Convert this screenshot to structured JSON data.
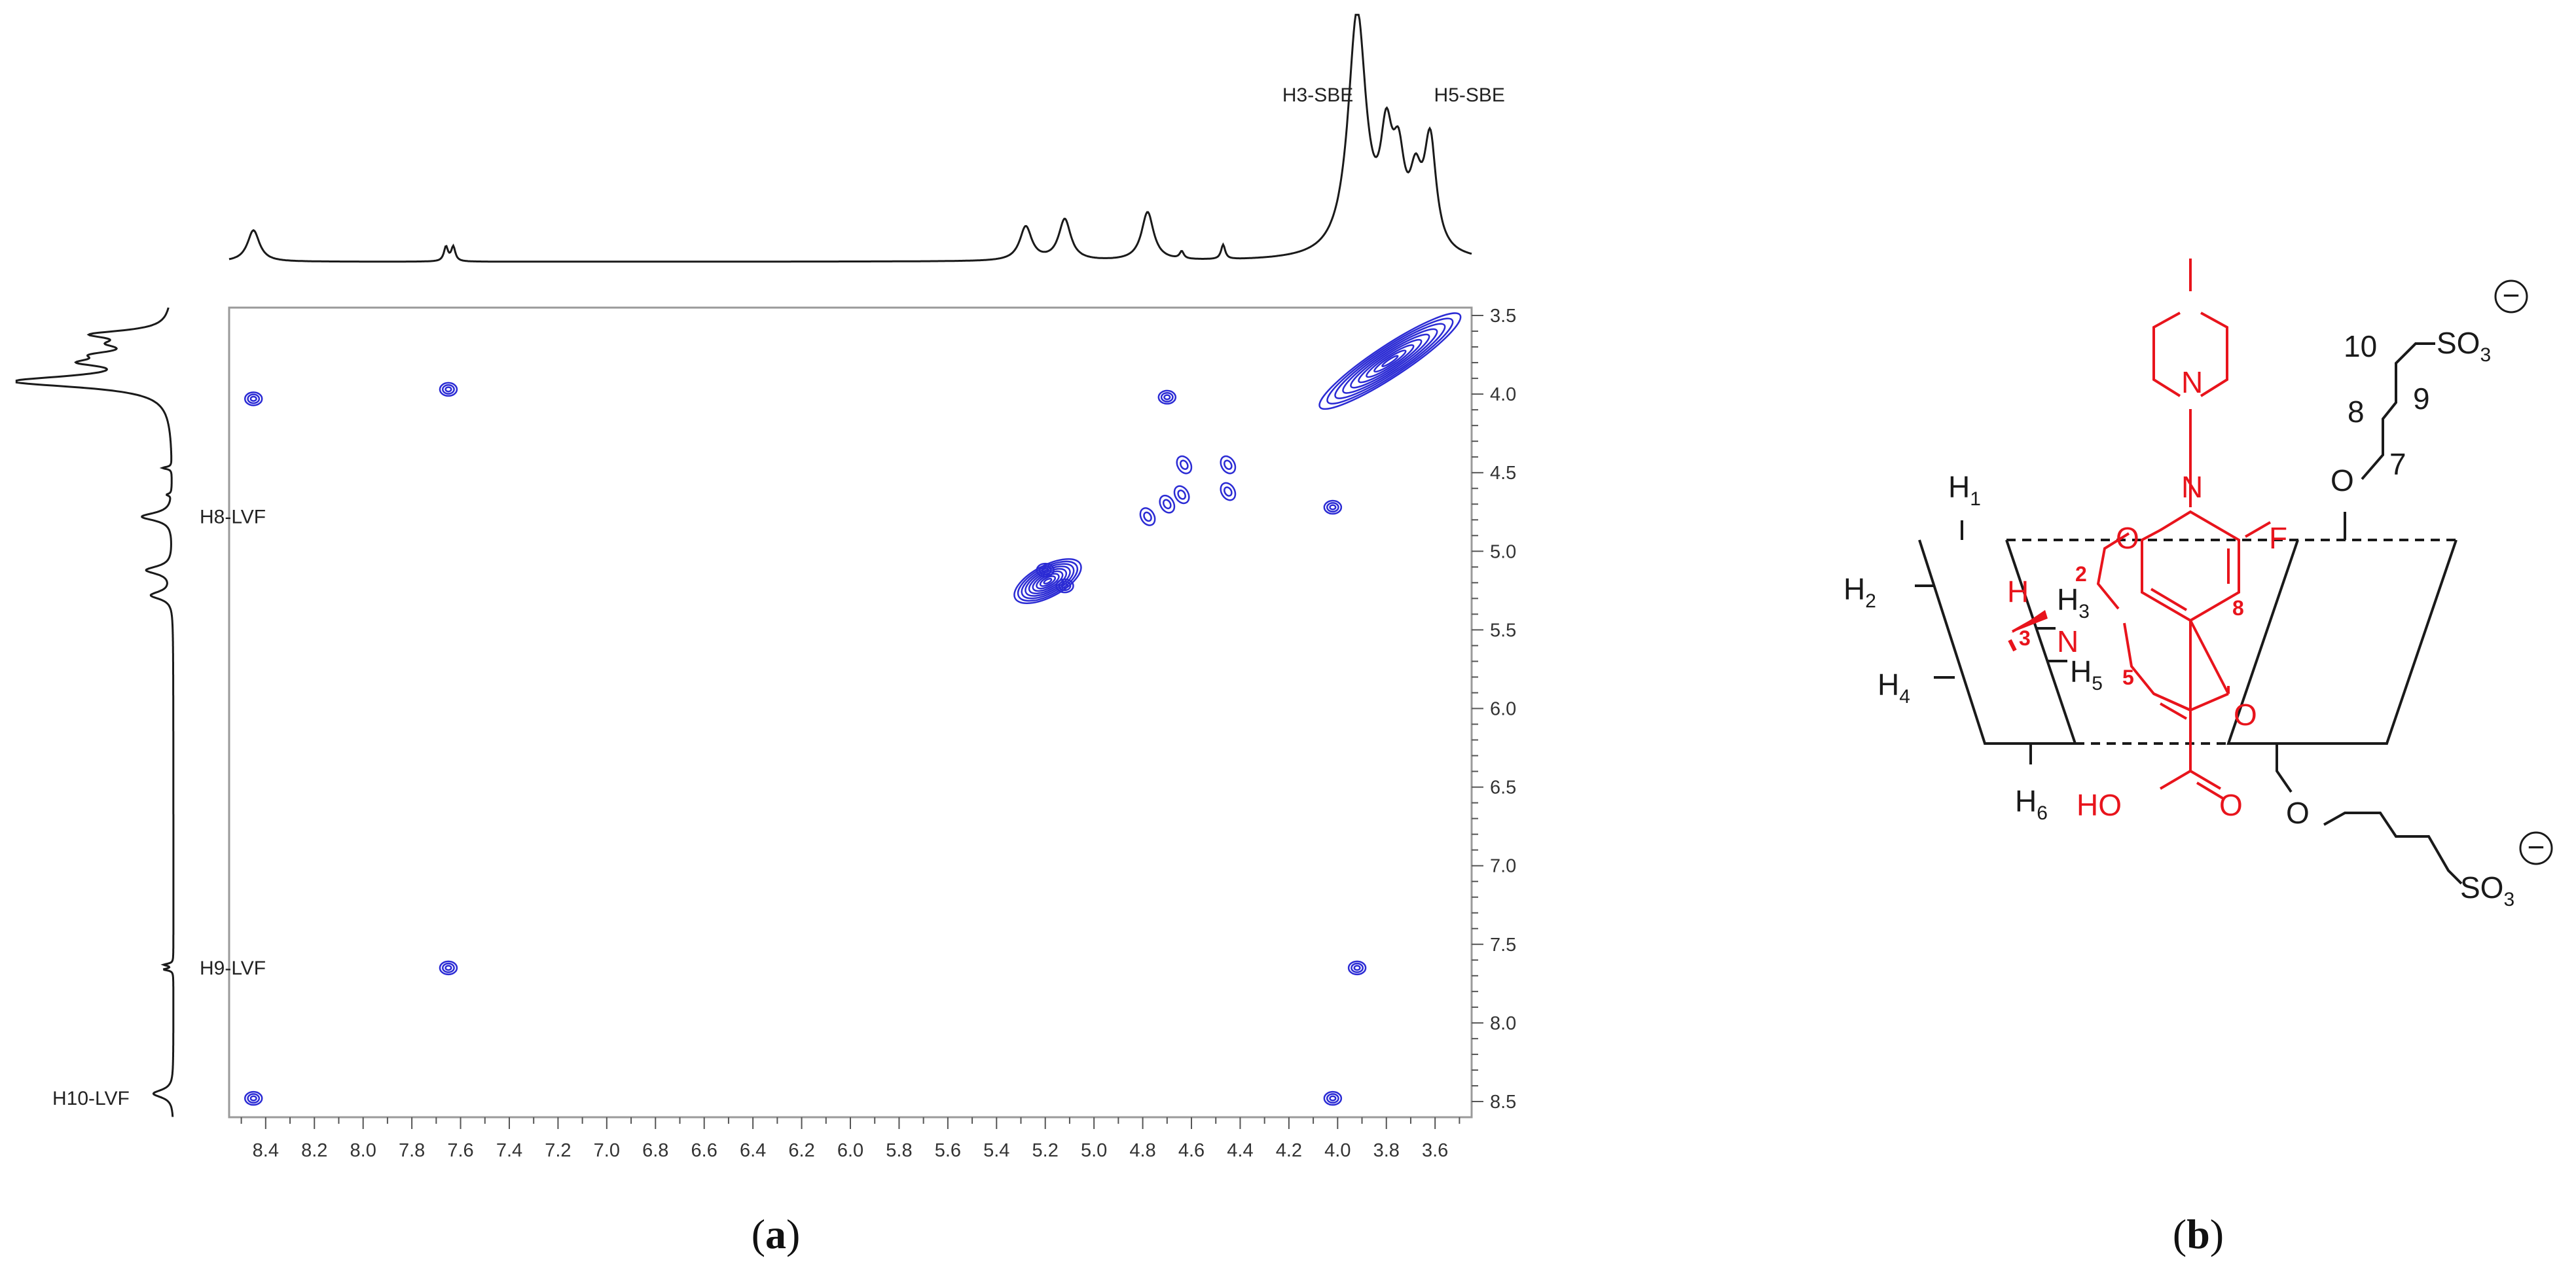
{
  "panel_a_label": "a",
  "panel_b_label": "b",
  "chart_data": {
    "type": "contour",
    "xlim": [
      8.55,
      3.45
    ],
    "ylim": [
      3.45,
      8.6
    ],
    "x_ticks": [
      "8.4",
      "8.2",
      "8.0",
      "7.8",
      "7.6",
      "7.4",
      "7.2",
      "7.0",
      "6.8",
      "6.6",
      "6.4",
      "6.2",
      "6.0",
      "5.8",
      "5.6",
      "5.4",
      "5.2",
      "5.0",
      "4.8",
      "4.6",
      "4.4",
      "4.2",
      "4.0",
      "3.8",
      "3.6"
    ],
    "y_ticks": [
      "3.5",
      "4.0",
      "4.5",
      "5.0",
      "5.5",
      "6.0",
      "6.5",
      "7.0",
      "7.5",
      "8.0",
      "8.5"
    ],
    "grid": false,
    "contour_color": "#2b2bd4",
    "top_projection_annotations": [
      {
        "label": "H3-SBE",
        "ppm": 3.92
      },
      {
        "label": "H5-SBE",
        "ppm": 3.62
      }
    ],
    "left_projection_annotations": [
      {
        "label": "H8-LVF",
        "ppm": 4.78
      },
      {
        "label": "H9-LVF",
        "ppm": 7.65
      },
      {
        "label": "H10-LVF",
        "ppm": 8.48
      }
    ],
    "diagonal_peaks": [
      {
        "x": 4.45,
        "y": 4.45
      },
      {
        "x": 4.64,
        "y": 4.64
      },
      {
        "x": 4.7,
        "y": 4.7
      },
      {
        "x": 4.78,
        "y": 4.78
      },
      {
        "x": 4.45,
        "y": 4.62
      },
      {
        "x": 4.63,
        "y": 4.45
      }
    ],
    "diagonal_ridges": [
      {
        "x1": 5.3,
        "y1": 5.28,
        "x2": 5.08,
        "y2": 5.1
      },
      {
        "x1": 4.05,
        "y1": 4.06,
        "x2": 3.52,
        "y2": 3.52
      }
    ],
    "cross_peaks": [
      {
        "x": 8.45,
        "y": 4.03
      },
      {
        "x": 7.65,
        "y": 3.97
      },
      {
        "x": 7.65,
        "y": 7.65
      },
      {
        "x": 3.92,
        "y": 7.65
      },
      {
        "x": 8.45,
        "y": 8.48
      },
      {
        "x": 4.02,
        "y": 8.48
      },
      {
        "x": 4.7,
        "y": 4.02
      },
      {
        "x": 4.02,
        "y": 4.72
      },
      {
        "x": 5.2,
        "y": 5.12
      },
      {
        "x": 5.12,
        "y": 5.22
      }
    ],
    "top_projection_peaks": [
      {
        "ppm": 8.45,
        "intensity": 0.13
      },
      {
        "ppm": 7.66,
        "intensity": 0.06
      },
      {
        "ppm": 7.63,
        "intensity": 0.06
      },
      {
        "ppm": 5.28,
        "intensity": 0.14
      },
      {
        "ppm": 5.12,
        "intensity": 0.17
      },
      {
        "ppm": 4.78,
        "intensity": 0.2
      },
      {
        "ppm": 4.64,
        "intensity": 0.03
      },
      {
        "ppm": 4.47,
        "intensity": 0.06
      },
      {
        "ppm": 3.92,
        "intensity": 1.0
      },
      {
        "ppm": 3.8,
        "intensity": 0.4
      },
      {
        "ppm": 3.75,
        "intensity": 0.32
      },
      {
        "ppm": 3.68,
        "intensity": 0.25
      },
      {
        "ppm": 3.62,
        "intensity": 0.45
      }
    ]
  },
  "panel_b": {
    "black_labels": [
      {
        "text": "H",
        "sub": "1"
      },
      {
        "text": "H",
        "sub": "2"
      },
      {
        "text": "H",
        "sub": "3"
      },
      {
        "text": "H",
        "sub": "4"
      },
      {
        "text": "H",
        "sub": "5"
      },
      {
        "text": "H",
        "sub": "6"
      },
      {
        "text": "10",
        "sub": ""
      },
      {
        "text": "8",
        "sub": ""
      },
      {
        "text": "9",
        "sub": ""
      },
      {
        "text": "7",
        "sub": ""
      },
      {
        "text": "O",
        "sub": ""
      },
      {
        "text": "O",
        "sub": ""
      },
      {
        "text": "SO",
        "sub": "3"
      },
      {
        "text": "SO",
        "sub": "3"
      }
    ],
    "red_labels": [
      "N",
      "N",
      "O",
      "F",
      "H",
      "N",
      "O",
      "HO",
      "O"
    ],
    "red_numbers": [
      "2",
      "3",
      "5",
      "8"
    ],
    "charge_symbol": "−"
  }
}
